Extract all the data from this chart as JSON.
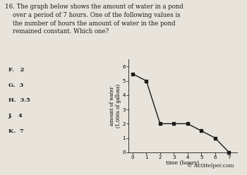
{
  "x": [
    0,
    1,
    2,
    3,
    4,
    5,
    6,
    7
  ],
  "y": [
    5.5,
    5.0,
    2.0,
    2.0,
    2.0,
    1.5,
    1.0,
    0.0
  ],
  "xlabel": "time (hours)",
  "ylabel": "amount of water\n(1,000s of gallons)",
  "xlim": [
    -0.3,
    7.6
  ],
  "ylim": [
    0,
    6.5
  ],
  "xticks": [
    0,
    1,
    2,
    3,
    4,
    5,
    6,
    7
  ],
  "yticks": [
    0,
    1,
    2,
    3,
    4,
    5,
    6
  ],
  "line_color": "#1a1a1a",
  "marker": "s",
  "marker_size": 2.5,
  "line_width": 1.0,
  "background_color": "#e8e4dc",
  "copyright_text": "© ActHelper.com",
  "question_text": "16. The graph below shows the amount of water in a pond\n    over a period of 7 hours. One of the following values is\n    the number of hours the amount of water in the pond\n    remained constant. Which one?",
  "choices": [
    "F.   2",
    "G.  3",
    "H.  3.5",
    "J.   4",
    "K.  7"
  ]
}
